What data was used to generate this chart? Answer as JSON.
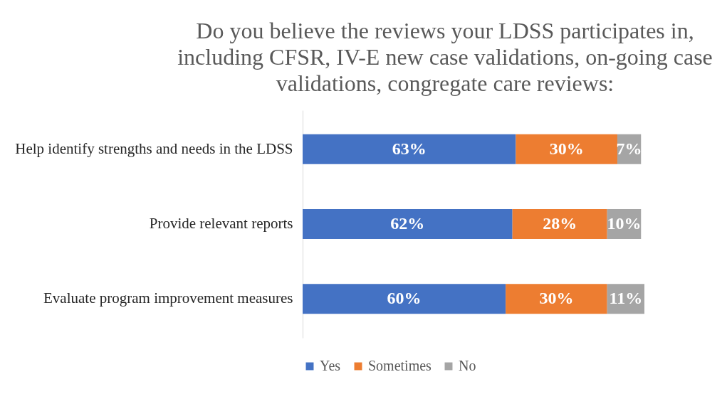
{
  "chart_data": {
    "type": "bar",
    "orientation": "horizontal",
    "stacked": true,
    "title": "Do you believe the reviews your LDSS participates in, including CFSR, IV-E new case validations, on-going case validations, congregate care reviews:",
    "categories": [
      "Help identify strengths and needs in the LDSS",
      "Provide relevant reports",
      "Evaluate program improvement measures"
    ],
    "series": [
      {
        "name": "Yes",
        "color": "#4472c4",
        "values": [
          63,
          62,
          60
        ],
        "value_labels": [
          "63%",
          "62%",
          "60%"
        ]
      },
      {
        "name": "Sometimes",
        "color": "#ed7d31",
        "values": [
          30,
          28,
          30
        ],
        "value_labels": [
          "30%",
          "28%",
          "30%"
        ]
      },
      {
        "name": "No",
        "color": "#a5a5a5",
        "values": [
          7,
          10,
          11
        ],
        "value_labels": [
          "7%",
          "10%",
          "11%"
        ]
      }
    ],
    "legend": "bottom"
  }
}
